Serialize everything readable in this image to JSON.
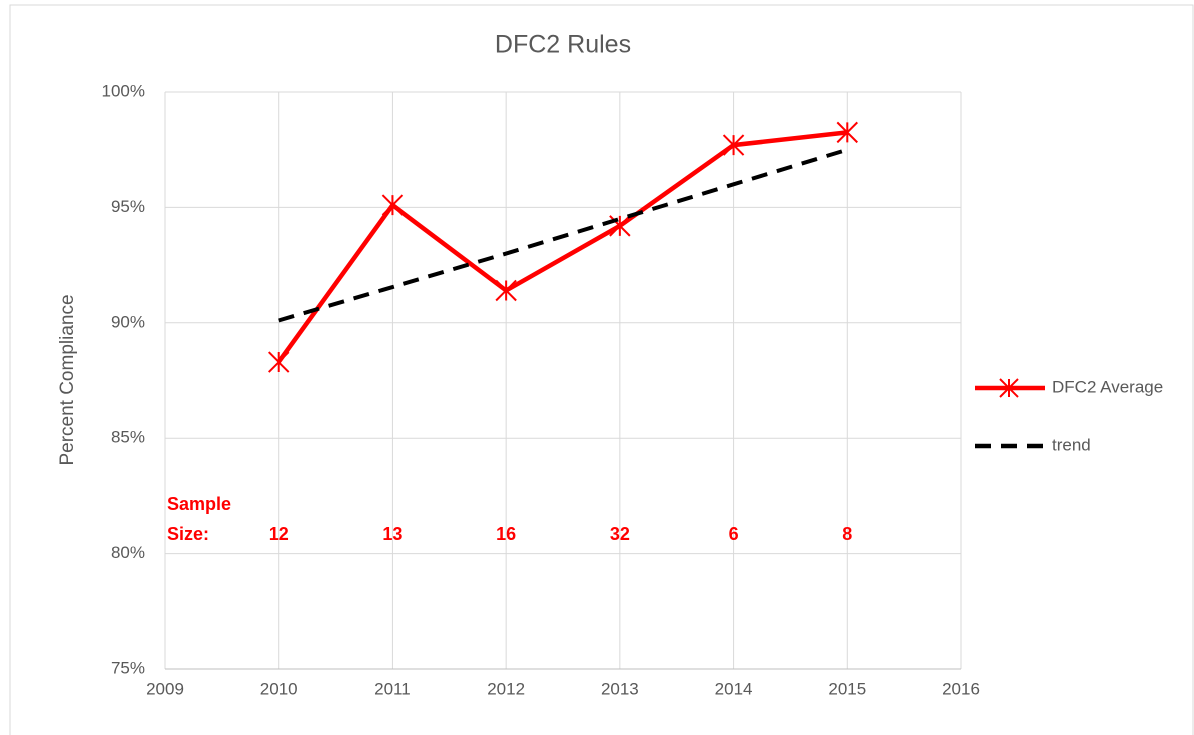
{
  "chart_data": {
    "type": "line",
    "title": "DFC2 Rules",
    "y_label": "Percent Compliance",
    "x": [
      2010,
      2011,
      2012,
      2013,
      2014,
      2015
    ],
    "series": [
      {
        "name": "DFC2 Average",
        "color": "#ff0000",
        "values": [
          88.3,
          95.1,
          91.4,
          94.2,
          97.7,
          98.25
        ],
        "marker": "asterisk"
      },
      {
        "name": "trend",
        "color": "#000000",
        "values": [
          90.1,
          91.55,
          93.0,
          94.5,
          96.0,
          97.5
        ],
        "dash": true
      }
    ],
    "xlim": [
      2009,
      2016
    ],
    "xticks": [
      2009,
      2010,
      2011,
      2012,
      2013,
      2014,
      2015,
      2016
    ],
    "ylim": [
      75,
      100
    ],
    "yticks": [
      {
        "value": 75,
        "label": "75%"
      },
      {
        "value": 80,
        "label": "80%"
      },
      {
        "value": 85,
        "label": "85%"
      },
      {
        "value": 90,
        "label": "90%"
      },
      {
        "value": 95,
        "label": "95%"
      },
      {
        "value": 100,
        "label": "100%"
      }
    ],
    "grid": true,
    "legend": "right",
    "sample_size_label": [
      "Sample",
      "Size:"
    ],
    "sample_sizes": [
      12,
      13,
      16,
      32,
      6,
      8
    ]
  }
}
